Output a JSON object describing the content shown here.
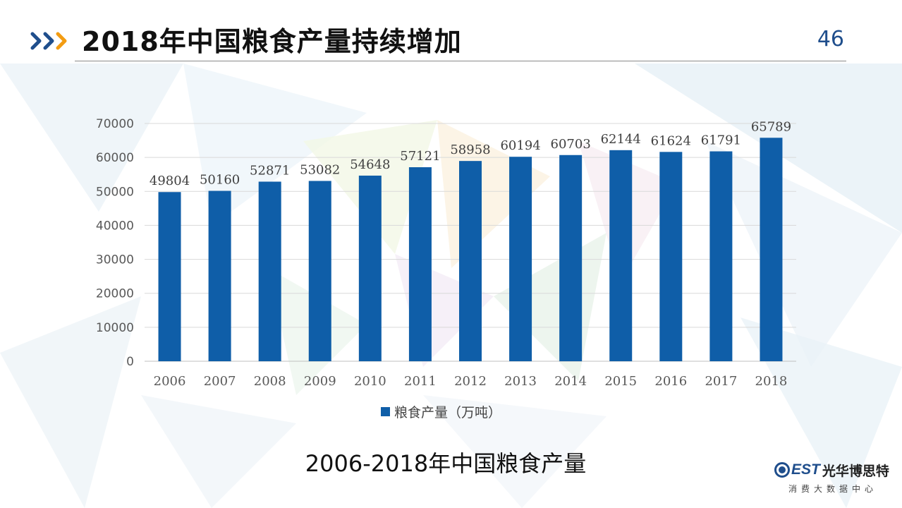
{
  "slide": {
    "title": "2018年中国粮食产量持续增加",
    "page_number": "46",
    "caption": "2006-2018年中国粮食产量"
  },
  "logo": {
    "brand_latin": "EST",
    "brand_cn": "光华博思特",
    "subtitle": "消费大数据中心"
  },
  "colors": {
    "bar": "#0f5ea8",
    "accent_orange": "#f39c12",
    "accent_blue": "#1f4e8c"
  },
  "chart_data": {
    "type": "bar",
    "categories": [
      "2006",
      "2007",
      "2008",
      "2009",
      "2010",
      "2011",
      "2012",
      "2013",
      "2014",
      "2015",
      "2016",
      "2017",
      "2018"
    ],
    "series": [
      {
        "name": "粮食产量（万吨）",
        "values": [
          49804,
          50160,
          52871,
          53082,
          54648,
          57121,
          58958,
          60194,
          60703,
          62144,
          61624,
          61791,
          65789
        ]
      }
    ],
    "ylim": [
      0,
      70000
    ],
    "yticks": [
      0,
      10000,
      20000,
      30000,
      40000,
      50000,
      60000,
      70000
    ],
    "grid": true,
    "legend": "bottom",
    "data_labels": true
  }
}
